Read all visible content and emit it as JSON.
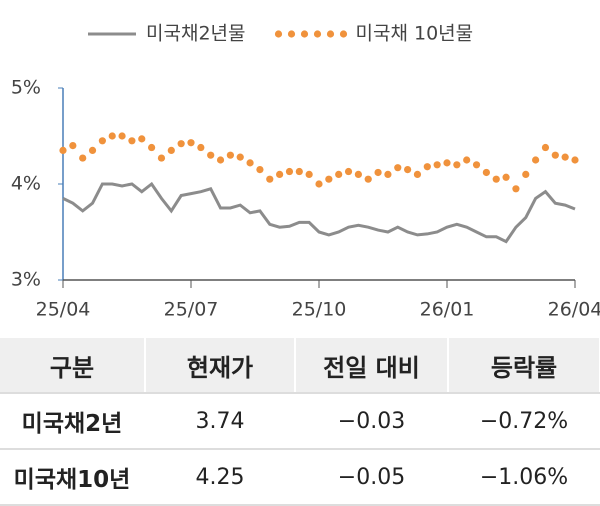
{
  "chart_data": {
    "type": "line",
    "categories": [
      "25/04",
      null,
      null,
      null,
      null,
      null,
      null,
      null,
      null,
      null,
      null,
      null,
      null,
      "25/07",
      null,
      null,
      null,
      null,
      null,
      null,
      null,
      null,
      null,
      null,
      null,
      null,
      "25/10",
      null,
      null,
      null,
      null,
      null,
      null,
      null,
      null,
      null,
      null,
      null,
      null,
      "26/01",
      null,
      null,
      null,
      null,
      null,
      null,
      null,
      null,
      null,
      null,
      null,
      null,
      "26/04"
    ],
    "series": [
      {
        "name": "미국채2년물",
        "color": "#8c8c8c",
        "mark": "line",
        "values": [
          3.85,
          3.8,
          3.72,
          3.8,
          4.0,
          4.0,
          3.98,
          4.0,
          3.92,
          4.0,
          3.85,
          3.72,
          3.88,
          3.9,
          3.92,
          3.95,
          3.75,
          3.75,
          3.78,
          3.7,
          3.72,
          3.58,
          3.55,
          3.56,
          3.6,
          3.6,
          3.5,
          3.47,
          3.5,
          3.55,
          3.57,
          3.55,
          3.52,
          3.5,
          3.55,
          3.5,
          3.47,
          3.48,
          3.5,
          3.55,
          3.58,
          3.55,
          3.5,
          3.45,
          3.45,
          3.4,
          3.55,
          3.65,
          3.85,
          3.92,
          3.8,
          3.78,
          3.74
        ]
      },
      {
        "name": "미국채 10년물",
        "color": "#f0923c",
        "mark": "dots",
        "values": [
          4.35,
          4.4,
          4.27,
          4.35,
          4.45,
          4.5,
          4.5,
          4.45,
          4.47,
          4.38,
          4.27,
          4.35,
          4.42,
          4.43,
          4.38,
          4.3,
          4.25,
          4.3,
          4.28,
          4.22,
          4.15,
          4.05,
          4.1,
          4.13,
          4.13,
          4.1,
          4.0,
          4.05,
          4.1,
          4.13,
          4.1,
          4.05,
          4.12,
          4.1,
          4.17,
          4.15,
          4.1,
          4.18,
          4.2,
          4.22,
          4.2,
          4.25,
          4.2,
          4.12,
          4.05,
          4.07,
          3.95,
          4.1,
          4.25,
          4.38,
          4.3,
          4.28,
          4.25
        ]
      }
    ],
    "ylim": [
      3,
      5
    ],
    "yticks": [
      {
        "value": 3,
        "label": "3%"
      },
      {
        "value": 4,
        "label": "4%"
      },
      {
        "value": 5,
        "label": "5%"
      }
    ],
    "grid": false
  },
  "table": {
    "header": [
      "구분",
      "현재가",
      "전일 대비",
      "등락률"
    ],
    "rows": [
      [
        "미국채2년",
        "3.74",
        "−0.03",
        "−0.72%"
      ],
      [
        "미국채10년",
        "4.25",
        "−0.05",
        "−1.06%"
      ]
    ]
  }
}
